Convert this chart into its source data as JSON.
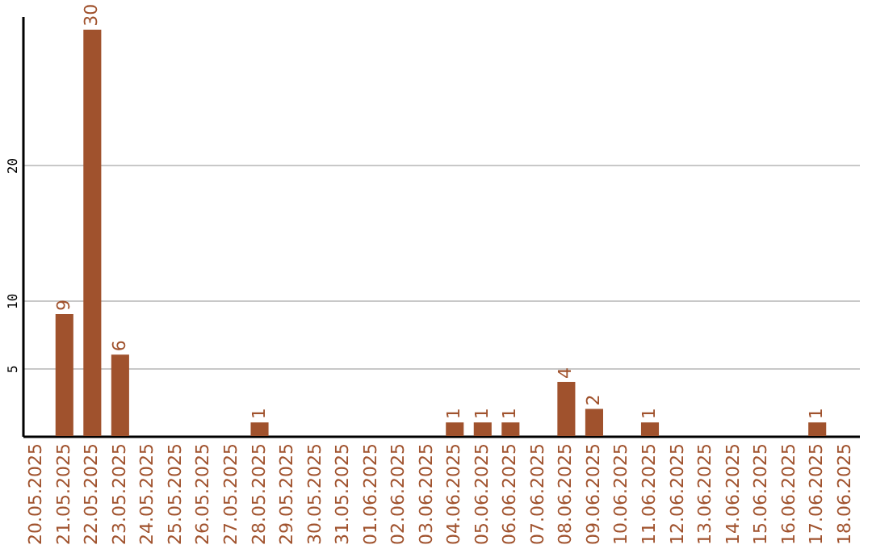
{
  "chart_data": {
    "type": "bar",
    "categories": [
      "20.05.2025",
      "21.05.2025",
      "22.05.2025",
      "23.05.2025",
      "24.05.2025",
      "25.05.2025",
      "26.05.2025",
      "27.05.2025",
      "28.05.2025",
      "29.05.2025",
      "30.05.2025",
      "31.05.2025",
      "01.06.2025",
      "02.06.2025",
      "03.06.2025",
      "04.06.2025",
      "05.06.2025",
      "06.06.2025",
      "07.06.2025",
      "08.06.2025",
      "09.06.2025",
      "10.06.2025",
      "11.06.2025",
      "12.06.2025",
      "13.06.2025",
      "14.06.2025",
      "15.06.2025",
      "16.06.2025",
      "17.06.2025",
      "18.06.2025"
    ],
    "values": [
      0,
      9,
      30,
      6,
      0,
      0,
      0,
      0,
      1,
      0,
      0,
      0,
      0,
      0,
      0,
      1,
      1,
      1,
      0,
      4,
      2,
      0,
      1,
      0,
      0,
      0,
      0,
      0,
      1,
      0
    ],
    "value_labels": [
      null,
      "9",
      "30",
      "6",
      null,
      null,
      null,
      null,
      "1",
      null,
      null,
      null,
      null,
      null,
      null,
      "1",
      "1",
      "1",
      null,
      "4",
      "2",
      null,
      "1",
      null,
      null,
      null,
      null,
      null,
      "1",
      null
    ],
    "color": "#a0522d",
    "ylim": [
      0,
      31
    ],
    "yticks": [
      5,
      10,
      20
    ],
    "grid": "y"
  }
}
